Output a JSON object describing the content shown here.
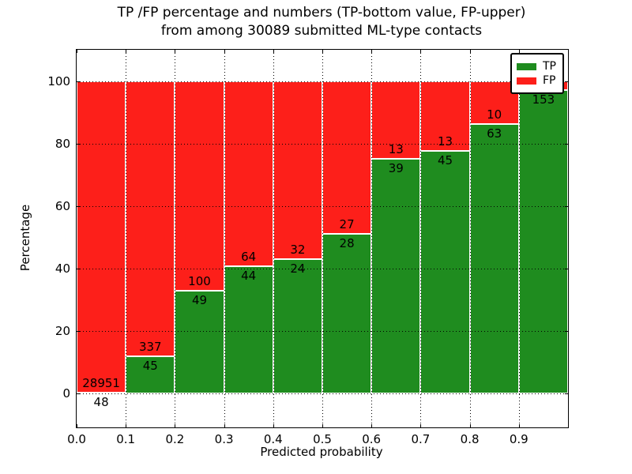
{
  "figure": {
    "title_line1": "TP /FP percentage and numbers (TP-bottom value, FP-upper)",
    "title_line2": "from among 30089 submitted ML-type contacts"
  },
  "chart_data": {
    "type": "bar",
    "stacked": true,
    "title": "TP /FP percentage and numbers (TP-bottom value, FP-upper) from among 30089 submitted ML-type contacts",
    "xlabel": "Predicted probability",
    "ylabel": "Percentage",
    "xlim": [
      0.0,
      1.0
    ],
    "ylim": [
      -11,
      110
    ],
    "x_tick_values": [
      0.0,
      0.1,
      0.2,
      0.3,
      0.4,
      0.5,
      0.6,
      0.7,
      0.8,
      0.9
    ],
    "x_tick_labels": [
      "0.0",
      "0.1",
      "0.2",
      "0.3",
      "0.4",
      "0.5",
      "0.6",
      "0.7",
      "0.8",
      "0.9"
    ],
    "y_tick_values": [
      0,
      20,
      40,
      60,
      80,
      100
    ],
    "y_tick_labels": [
      "0",
      "20",
      "40",
      "60",
      "80",
      "100"
    ],
    "grid": true,
    "bin_starts": [
      0.0,
      0.1,
      0.2,
      0.3,
      0.4,
      0.5,
      0.6,
      0.7,
      0.8,
      0.9
    ],
    "bin_width": 0.1,
    "series": [
      {
        "name": "TP",
        "color": "#1f8c1f",
        "counts": [
          48,
          45,
          49,
          44,
          24,
          28,
          39,
          45,
          63,
          153
        ],
        "pct": [
          0.17,
          11.78,
          32.89,
          40.74,
          42.86,
          50.91,
          75.0,
          77.59,
          86.3,
          97.0
        ]
      },
      {
        "name": "FP",
        "color": "#fd1f1a",
        "counts": [
          28951,
          337,
          100,
          64,
          32,
          27,
          13,
          13,
          10,
          null
        ],
        "pct": [
          99.83,
          88.22,
          67.11,
          59.26,
          57.14,
          49.09,
          25.0,
          22.41,
          13.7,
          3.0
        ]
      }
    ],
    "legend": {
      "position": "upper right",
      "entries": [
        {
          "label": "TP",
          "color": "#1f8c1f"
        },
        {
          "label": "FP",
          "color": "#fd1f1a"
        }
      ]
    }
  }
}
